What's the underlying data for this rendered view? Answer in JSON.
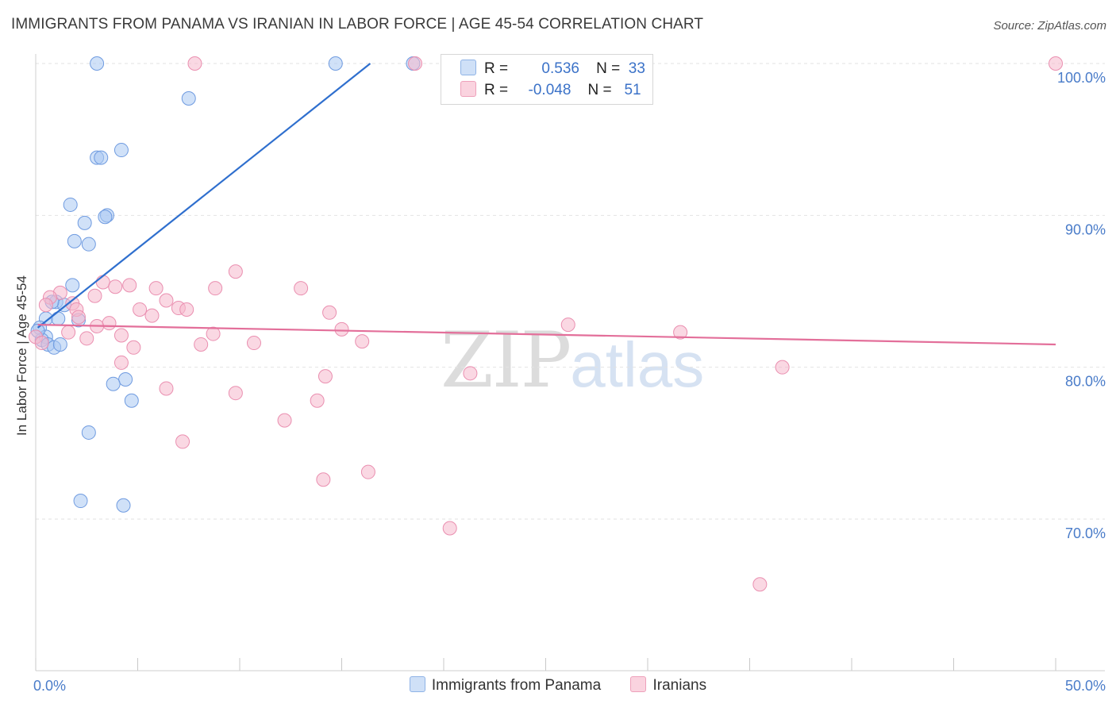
{
  "title": "IMMIGRANTS FROM PANAMA VS IRANIAN IN LABOR FORCE | AGE 45-54 CORRELATION CHART",
  "source": "Source: ZipAtlas.com",
  "watermark": {
    "zip": "ZIP",
    "atlas": "atlas"
  },
  "legend_top": {
    "rows": [
      {
        "r_label": "R =",
        "r_value": "0.536",
        "n_label": "N =",
        "n_value": "33",
        "color": "#a9c8f2"
      },
      {
        "r_label": "R =",
        "r_value": "-0.048",
        "n_label": "N =",
        "n_value": "51",
        "color": "#f6b8cc"
      }
    ]
  },
  "legend_bottom": [
    {
      "label": "Immigrants from Panama",
      "color": "#a9c8f2"
    },
    {
      "label": "Iranians",
      "color": "#f6b8cc"
    }
  ],
  "chart_data": {
    "type": "scatter",
    "title": "IMMIGRANTS FROM PANAMA VS IRANIAN IN LABOR FORCE | AGE 45-54 CORRELATION CHART",
    "xlabel": "",
    "ylabel": "In Labor Force | Age 45-54",
    "xlim": [
      0,
      50
    ],
    "ylim": [
      60,
      101
    ],
    "x_tick_labels": [
      {
        "value": 0,
        "label": "0.0%"
      },
      {
        "value": 50,
        "label": "50.0%"
      }
    ],
    "y_ticks": [
      {
        "value": 70,
        "label": "70.0%"
      },
      {
        "value": 80,
        "label": "80.0%"
      },
      {
        "value": 90,
        "label": "90.0%"
      },
      {
        "value": 100,
        "label": "100.0%"
      }
    ],
    "series": [
      {
        "name": "Immigrants from Panama",
        "color": "#a9c8f2",
        "stroke": "#6f9be0",
        "line_color": "#2f6fce",
        "trend": {
          "x0": 0.1,
          "y0": 82.6,
          "x1": 16.4,
          "y1": 100.0
        },
        "points": [
          [
            3.0,
            100.0
          ],
          [
            14.7,
            100.0
          ],
          [
            18.5,
            100.0
          ],
          [
            7.5,
            97.7
          ],
          [
            4.2,
            94.3
          ],
          [
            3.0,
            93.8
          ],
          [
            3.2,
            93.8
          ],
          [
            1.7,
            90.7
          ],
          [
            3.5,
            90.0
          ],
          [
            3.4,
            89.9
          ],
          [
            2.4,
            89.5
          ],
          [
            1.9,
            88.3
          ],
          [
            2.6,
            88.1
          ],
          [
            1.8,
            85.4
          ],
          [
            1.0,
            84.3
          ],
          [
            1.4,
            84.1
          ],
          [
            0.8,
            84.3
          ],
          [
            0.5,
            83.2
          ],
          [
            1.1,
            83.2
          ],
          [
            2.1,
            83.1
          ],
          [
            0.2,
            82.6
          ],
          [
            0.5,
            82.0
          ],
          [
            0.3,
            81.8
          ],
          [
            0.6,
            81.5
          ],
          [
            0.9,
            81.3
          ],
          [
            1.2,
            81.5
          ],
          [
            4.4,
            79.2
          ],
          [
            3.8,
            78.9
          ],
          [
            4.7,
            77.8
          ],
          [
            2.6,
            75.7
          ],
          [
            2.2,
            71.2
          ],
          [
            4.3,
            70.9
          ],
          [
            0.1,
            82.4
          ]
        ]
      },
      {
        "name": "Iranians",
        "color": "#f6b8cc",
        "stroke": "#ea8fb0",
        "line_color": "#e36f9a",
        "trend": {
          "x0": 0.1,
          "y0": 82.8,
          "x1": 50.0,
          "y1": 81.5
        },
        "points": [
          [
            7.8,
            100.0
          ],
          [
            18.6,
            100.0
          ],
          [
            50.0,
            100.0
          ],
          [
            9.8,
            86.3
          ],
          [
            3.3,
            85.6
          ],
          [
            3.9,
            85.3
          ],
          [
            4.6,
            85.4
          ],
          [
            5.9,
            85.2
          ],
          [
            8.8,
            85.2
          ],
          [
            13.0,
            85.2
          ],
          [
            1.2,
            84.9
          ],
          [
            2.9,
            84.7
          ],
          [
            0.7,
            84.6
          ],
          [
            6.4,
            84.4
          ],
          [
            0.5,
            84.1
          ],
          [
            1.8,
            84.2
          ],
          [
            2.0,
            83.8
          ],
          [
            7.0,
            83.9
          ],
          [
            7.4,
            83.8
          ],
          [
            5.1,
            83.8
          ],
          [
            14.4,
            83.6
          ],
          [
            5.7,
            83.4
          ],
          [
            2.1,
            83.3
          ],
          [
            3.6,
            82.9
          ],
          [
            3.0,
            82.7
          ],
          [
            15.0,
            82.5
          ],
          [
            26.1,
            82.8
          ],
          [
            31.6,
            82.3
          ],
          [
            1.6,
            82.3
          ],
          [
            4.2,
            82.1
          ],
          [
            8.7,
            82.2
          ],
          [
            2.5,
            81.9
          ],
          [
            10.7,
            81.6
          ],
          [
            8.1,
            81.5
          ],
          [
            16.0,
            81.7
          ],
          [
            4.8,
            81.3
          ],
          [
            4.2,
            80.3
          ],
          [
            36.6,
            80.0
          ],
          [
            21.3,
            79.6
          ],
          [
            14.2,
            79.4
          ],
          [
            6.4,
            78.6
          ],
          [
            9.8,
            78.3
          ],
          [
            13.8,
            77.8
          ],
          [
            12.2,
            76.5
          ],
          [
            7.2,
            75.1
          ],
          [
            16.3,
            73.1
          ],
          [
            14.1,
            72.6
          ],
          [
            20.3,
            69.4
          ],
          [
            35.5,
            65.7
          ],
          [
            0.0,
            82.0
          ],
          [
            0.3,
            81.6
          ]
        ]
      }
    ]
  }
}
